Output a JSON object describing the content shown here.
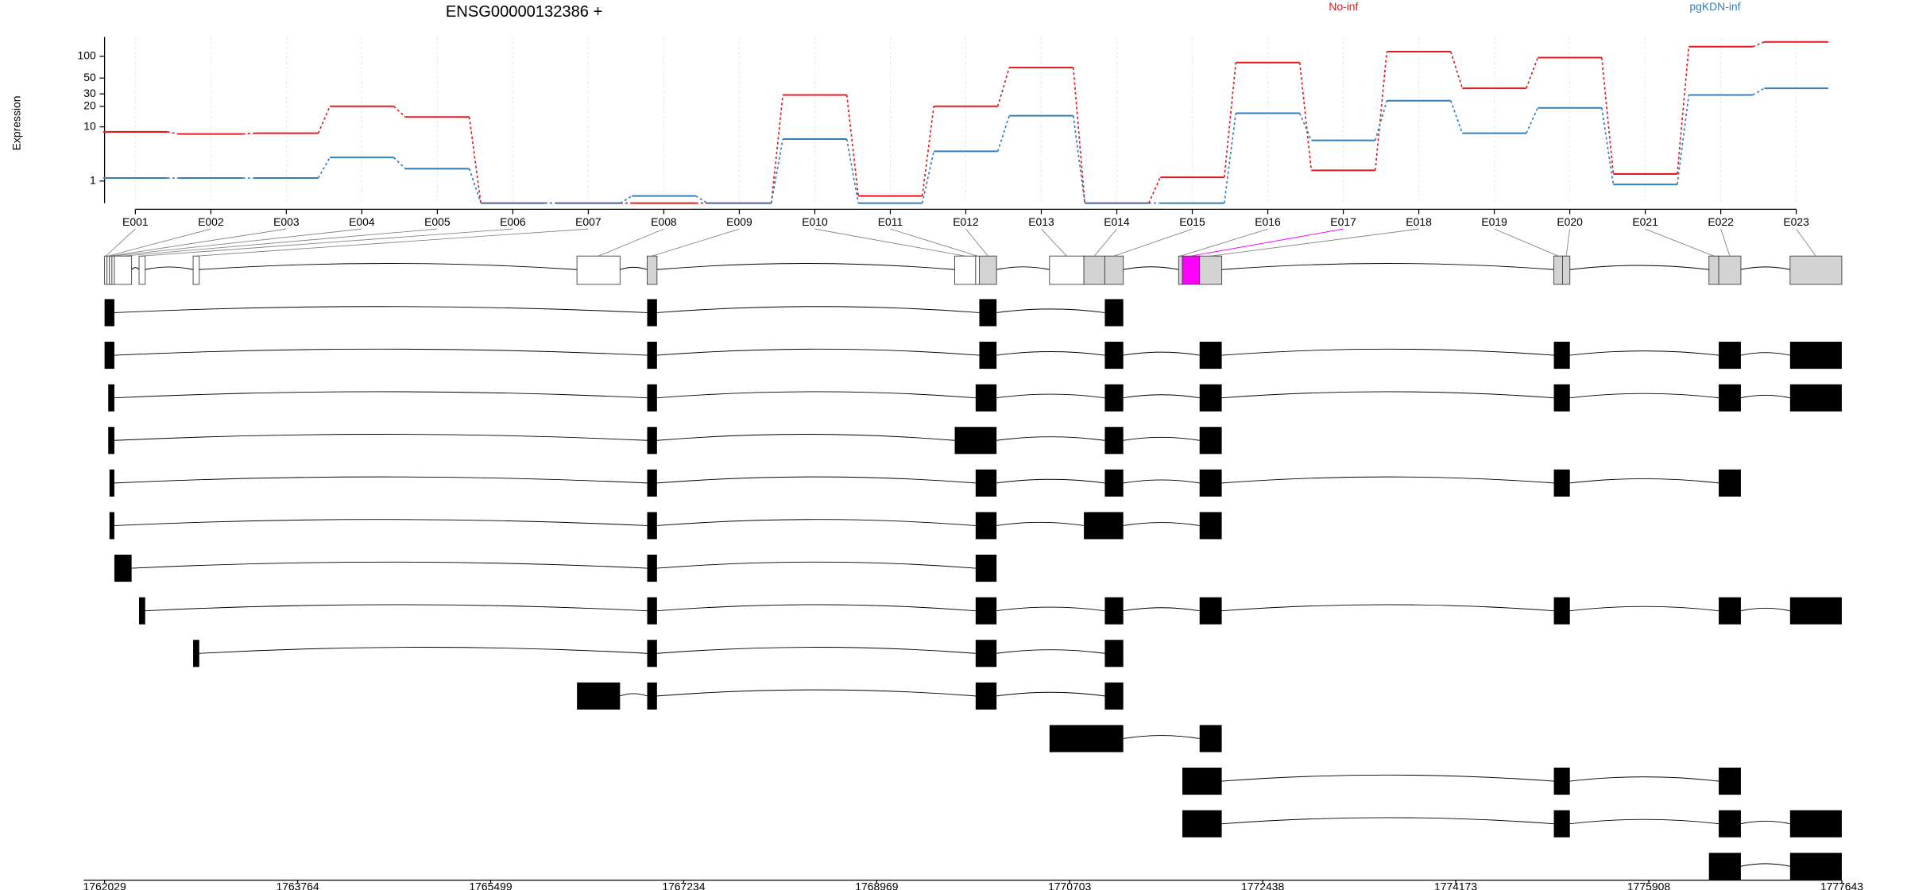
{
  "chart_data": {
    "type": "line",
    "title": "ENSG00000132386 +",
    "y_label": "Expression",
    "yscale": "log1p",
    "categories": [
      "E001",
      "E002",
      "E003",
      "E004",
      "E005",
      "E006",
      "E007",
      "E008",
      "E009",
      "E010",
      "E011",
      "E012",
      "E013",
      "E014",
      "E015",
      "E016",
      "E017",
      "E018",
      "E019",
      "E020",
      "E021",
      "E022",
      "E023"
    ],
    "series": [
      {
        "name": "No-inf",
        "color": "#e41a1c",
        "values": [
          8.4,
          7.8,
          8,
          20,
          14,
          0,
          0,
          0,
          0,
          29,
          0.25,
          20,
          70,
          0,
          1.25,
          82,
          1.8,
          116,
          36,
          96,
          1.5,
          136,
          158
        ]
      },
      {
        "name": "pgKDN-inf",
        "color": "#377eb8",
        "values": [
          1.2,
          1.2,
          1.2,
          3.2,
          1.95,
          0,
          0,
          0.25,
          0,
          6.5,
          0,
          4.1,
          14.6,
          0,
          0,
          15.9,
          6.2,
          24,
          8,
          19,
          0.8,
          29,
          36
        ]
      }
    ],
    "ylim": [
      0,
      185
    ],
    "yticks": [
      1,
      10,
      20,
      30,
      50,
      100
    ],
    "grid": true
  },
  "gene_model": {
    "xlim": [
      1762029,
      1777643
    ],
    "xticks": [
      1762029,
      1763764,
      1765499,
      1767234,
      1768969,
      1770703,
      1772438,
      1774173,
      1775908,
      1777643
    ],
    "bins": [
      {
        "start": 1762029,
        "end": 1762051,
        "fill": "#ffffff"
      },
      {
        "start": 1762051,
        "end": 1762073,
        "fill": "#ffffff"
      },
      {
        "start": 1762073,
        "end": 1762095,
        "fill": "#ffffff"
      },
      {
        "start": 1762095,
        "end": 1762117,
        "fill": "#ffffff"
      },
      {
        "start": 1762117,
        "end": 1762272,
        "fill": "#ffffff"
      },
      {
        "start": 1762339,
        "end": 1762394,
        "fill": "#ffffff"
      },
      {
        "start": 1762825,
        "end": 1762880,
        "fill": "#ffffff"
      },
      {
        "start": 1766275,
        "end": 1766662,
        "fill": "#ffffff"
      },
      {
        "start": 1766906,
        "end": 1766994,
        "fill": "#d3d3d3"
      },
      {
        "start": 1769670,
        "end": 1769858,
        "fill": "#ffffff"
      },
      {
        "start": 1769858,
        "end": 1769891,
        "fill": "#ffffff"
      },
      {
        "start": 1769891,
        "end": 1770046,
        "fill": "#d3d3d3"
      },
      {
        "start": 1770522,
        "end": 1770831,
        "fill": "#ffffff"
      },
      {
        "start": 1770831,
        "end": 1771019,
        "fill": "#d3d3d3"
      },
      {
        "start": 1771019,
        "end": 1771185,
        "fill": "#d3d3d3"
      },
      {
        "start": 1771683,
        "end": 1771716,
        "fill": "#d3d3d3"
      },
      {
        "start": 1771716,
        "end": 1771871,
        "fill": "#ff00ff"
      },
      {
        "start": 1771871,
        "end": 1772070,
        "fill": "#d3d3d3"
      },
      {
        "start": 1775055,
        "end": 1775133,
        "fill": "#d3d3d3"
      },
      {
        "start": 1775133,
        "end": 1775199,
        "fill": "#d3d3d3"
      },
      {
        "start": 1776449,
        "end": 1776537,
        "fill": "#d3d3d3"
      },
      {
        "start": 1776537,
        "end": 1776736,
        "fill": "#d3d3d3"
      },
      {
        "start": 1777178,
        "end": 1777643,
        "fill": "#d3d3d3"
      }
    ],
    "transcripts": [
      [
        [
          1762029,
          1762117
        ],
        [
          1766906,
          1766994
        ],
        [
          1769891,
          1770046
        ],
        [
          1771019,
          1771185
        ]
      ],
      [
        [
          1762029,
          1762117
        ],
        [
          1766906,
          1766994
        ],
        [
          1769891,
          1770046
        ],
        [
          1771019,
          1771185
        ],
        [
          1771871,
          1772070
        ],
        [
          1775055,
          1775199
        ],
        [
          1776537,
          1776736
        ],
        [
          1777178,
          1777643
        ]
      ],
      [
        [
          1762062,
          1762117
        ],
        [
          1766906,
          1766994
        ],
        [
          1769858,
          1770046
        ],
        [
          1771019,
          1771185
        ],
        [
          1771871,
          1772070
        ],
        [
          1775055,
          1775199
        ],
        [
          1776537,
          1776736
        ],
        [
          1777178,
          1777643
        ]
      ],
      [
        [
          1762062,
          1762117
        ],
        [
          1766906,
          1766994
        ],
        [
          1769670,
          1770046
        ],
        [
          1771019,
          1771185
        ],
        [
          1771871,
          1772070
        ]
      ],
      [
        [
          1762073,
          1762117
        ],
        [
          1766906,
          1766994
        ],
        [
          1769858,
          1770046
        ],
        [
          1771019,
          1771185
        ],
        [
          1771871,
          1772070
        ],
        [
          1775055,
          1775199
        ],
        [
          1776537,
          1776736
        ]
      ],
      [
        [
          1762073,
          1762117
        ],
        [
          1766906,
          1766994
        ],
        [
          1769858,
          1770046
        ],
        [
          1770831,
          1771185
        ],
        [
          1771871,
          1772070
        ]
      ],
      [
        [
          1762117,
          1762272
        ],
        [
          1766906,
          1766994
        ],
        [
          1769858,
          1770046
        ]
      ],
      [
        [
          1762339,
          1762394
        ],
        [
          1766906,
          1766994
        ],
        [
          1769858,
          1770046
        ],
        [
          1771019,
          1771185
        ],
        [
          1771871,
          1772070
        ],
        [
          1775055,
          1775199
        ],
        [
          1776537,
          1776736
        ],
        [
          1777178,
          1777643
        ]
      ],
      [
        [
          1762825,
          1762880
        ],
        [
          1766906,
          1766994
        ],
        [
          1769858,
          1770046
        ],
        [
          1771019,
          1771185
        ]
      ],
      [
        [
          1766275,
          1766662
        ],
        [
          1766906,
          1766994
        ],
        [
          1769858,
          1770046
        ],
        [
          1771019,
          1771185
        ]
      ],
      [
        [
          1770522,
          1771185
        ],
        [
          1771871,
          1772070
        ]
      ],
      [
        [
          1771716,
          1772070
        ],
        [
          1775055,
          1775199
        ],
        [
          1776537,
          1776736
        ]
      ],
      [
        [
          1771716,
          1772070
        ],
        [
          1775055,
          1775199
        ],
        [
          1776537,
          1776736
        ],
        [
          1777178,
          1777643
        ]
      ],
      [
        [
          1776449,
          1776736
        ],
        [
          1777178,
          1777643
        ]
      ]
    ]
  }
}
